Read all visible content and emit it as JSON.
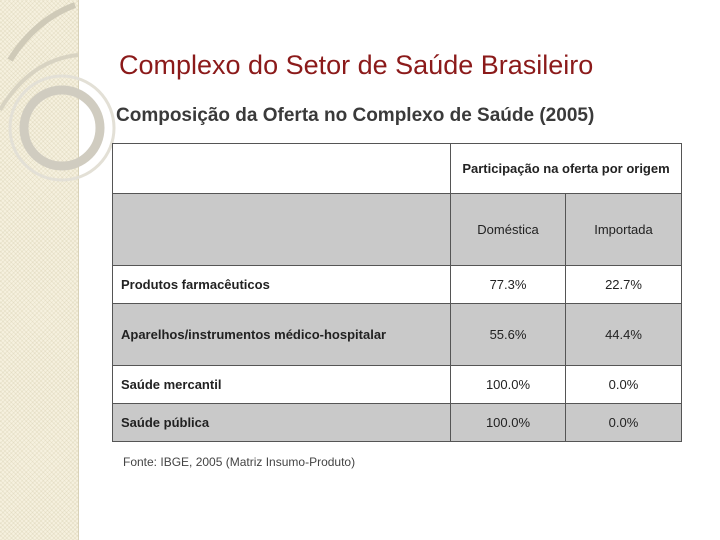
{
  "slide": {
    "title": "Complexo do Setor de Saúde Brasileiro",
    "table_heading": "Composição da Oferta no Complexo de Saúde (2005)",
    "source_note": "Fonte: IBGE, 2005 (Matriz Insumo-Produto)"
  },
  "table": {
    "group_header": "Participação na oferta por origem",
    "columns": [
      "Doméstica",
      "Importada"
    ],
    "rows": [
      {
        "label": "Produtos farmacêuticos",
        "domestica": "77.3%",
        "importada": "22.7%"
      },
      {
        "label": "Aparelhos/instrumentos médico-hospitalar",
        "domestica": "55.6%",
        "importada": "44.4%"
      },
      {
        "label": "Saúde mercantil",
        "domestica": "100.0%",
        "importada": "0.0%"
      },
      {
        "label": "Saúde pública",
        "domestica": "100.0%",
        "importada": "0.0%"
      }
    ]
  },
  "colors": {
    "title": "#8b1a1a",
    "band": "#f6f1df",
    "shaded_row": "#c9c9c9"
  }
}
